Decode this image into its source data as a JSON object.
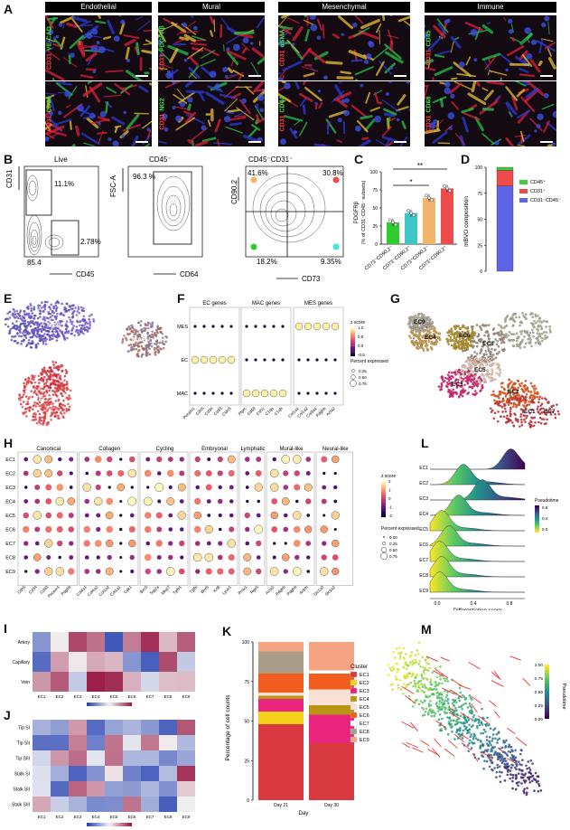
{
  "panel_letters": {
    "A": "A",
    "B": "B",
    "C": "C",
    "D": "D",
    "E": "E",
    "F": "F",
    "G": "G",
    "H": "H",
    "I": "I",
    "J": "J",
    "K": "K",
    "L": "L",
    "M": "M"
  },
  "panelA": {
    "headers": [
      "Endothelial",
      "Mural",
      "Mesenchymal",
      "Immune"
    ],
    "rows": [
      [
        {
          "red": "CD31",
          "green": "VE-CAD"
        },
        {
          "red": "CD31",
          "green": "PDGFRβ"
        },
        {
          "red": "CD31",
          "green": "αSMA"
        },
        {
          "red": "CD31",
          "green": "CD45"
        }
      ],
      [
        {
          "red": "CD31",
          "green": "CD34"
        },
        {
          "red": "CD31",
          "green": "NG2"
        },
        {
          "red": "CD31",
          "green": "CD44"
        },
        {
          "red": "CD31",
          "green": "CD68"
        }
      ]
    ]
  },
  "panelB": {
    "plot1": {
      "title": "Live",
      "q_upper": "11.1%",
      "q_lower_right": "2.78%",
      "q_lower_left": "85.4",
      "ylabel": "CD31",
      "xlabel": "CD45"
    },
    "plot2": {
      "title": "CD45⁻",
      "gate": "96.3 %",
      "ylabel": "FSC-A",
      "xlabel": "CD64"
    },
    "plot3": {
      "title": "CD45⁻CD31⁻",
      "q_tl": "41.6%",
      "q_tr": "30.8%",
      "q_bl": "18.2%",
      "q_br": "9.35%",
      "ylabel": "CD90.2",
      "xlabel": "CD73"
    }
  },
  "chart_data": [
    {
      "type": "bar",
      "panel": "C",
      "ylabel": "PDGFRβ",
      "ylabel2": "(% of CD31⁻CD45⁻ subsets)",
      "categories": [
        "CD73⁻CD90.2⁻",
        "CD73⁻CD90.2⁺",
        "CD73⁺CD90.2⁻",
        "CD73⁺CD90.2⁺"
      ],
      "values": [
        30,
        43,
        64,
        77
      ],
      "colors": [
        "#2ecc2e",
        "#3ec6c9",
        "#f4b36b",
        "#ee4b4b"
      ],
      "ylim": [
        0,
        100
      ],
      "yticks": [
        "0",
        "25",
        "50",
        "75",
        "100"
      ],
      "significance": [
        "**",
        "*"
      ]
    },
    {
      "type": "bar",
      "panel": "D",
      "stacked": true,
      "ylabel": "mBVO composition",
      "ylim": [
        0,
        100
      ],
      "yticks": [
        "0",
        "25",
        "50",
        "75",
        "100"
      ],
      "series": [
        {
          "name": "CD31⁻CD45⁻",
          "value": 82,
          "color": "#5f64e6"
        },
        {
          "name": "CD31⁺",
          "value": 15,
          "color": "#ee4b4b"
        },
        {
          "name": "CD45⁺",
          "value": 3,
          "color": "#43c843"
        }
      ],
      "legend": [
        "CD45⁺",
        "CD31⁺",
        "CD31⁻CD45⁻"
      ]
    },
    {
      "type": "bar",
      "panel": "K",
      "stacked": true,
      "ylabel": "Percentage of cell counts",
      "xlabel": "Day",
      "categories": [
        "Day 21",
        "Day 30"
      ],
      "ylim": [
        0,
        100
      ],
      "yticks": [
        "0",
        "25",
        "50",
        "75",
        "100"
      ],
      "legend_title": "Cluster",
      "series": [
        {
          "name": "EC1",
          "color": "#d93a3f",
          "values": [
            48,
            36
          ]
        },
        {
          "name": "EC2",
          "color": "#f3d21b",
          "values": [
            8,
            0
          ]
        },
        {
          "name": "EC3",
          "color": "#e8247c",
          "values": [
            8,
            18
          ]
        },
        {
          "name": "EC4",
          "color": "#b89412",
          "values": [
            2,
            6
          ]
        },
        {
          "name": "EC5",
          "color": "#fae1d6",
          "values": [
            2,
            10
          ]
        },
        {
          "name": "EC6",
          "color": "#f25c1c",
          "values": [
            12,
            10
          ]
        },
        {
          "name": "EC7",
          "color": "#ffffff",
          "values": [
            0,
            2
          ]
        },
        {
          "name": "EC8",
          "color": "#a99c88",
          "values": [
            14,
            0
          ]
        },
        {
          "name": "EC9",
          "color": "#f4a483",
          "values": [
            6,
            18
          ]
        }
      ]
    },
    {
      "type": "heatmap",
      "panel": "I",
      "rows": [
        "Artery",
        "Capillary",
        "Vein"
      ],
      "columns": [
        "EC1",
        "EC2",
        "EC3",
        "EC4",
        "EC5",
        "EC6",
        "EC7",
        "EC8",
        "EC9"
      ]
    },
    {
      "type": "heatmap",
      "panel": "J",
      "rows": [
        "Tip SI",
        "Tip SII",
        "Tip SIII",
        "Stalk SI",
        "Stalk SII",
        "Stalk SIII"
      ],
      "columns": [
        "EC1",
        "EC2",
        "EC3",
        "EC4",
        "EC5",
        "EC6",
        "EC7",
        "EC8",
        "EC9"
      ]
    }
  ],
  "panelE": {
    "labels": [
      "MES",
      "MAC",
      "EC"
    ]
  },
  "panelF": {
    "groups": [
      "EC genes",
      "MAC genes",
      "MES genes"
    ],
    "rows": [
      "MES",
      "EC",
      "MAC"
    ],
    "genes": [
      "Pecam1",
      "Cdh5",
      "Cd34",
      "Cd93",
      "Cldn5",
      "Ptprc",
      "Cd68",
      "Csf1r",
      "C1qa",
      "C1qb",
      "Col1a1",
      "Col1a2",
      "Col3a1",
      "Pdgfrb",
      "Acta2"
    ],
    "legend_title": "z score",
    "legend_ticks": [
      "1.0",
      "0.5",
      "0.0",
      "-0.5"
    ],
    "size_title": "Percent expressed",
    "size_ticks": [
      "0.25",
      "0.50",
      "0.75"
    ]
  },
  "panelG": {
    "clusters": [
      "EC9",
      "EC8",
      "EC4",
      "EC6",
      "EC5",
      "EC3",
      "EC2",
      "EC1",
      "EC7"
    ]
  },
  "panelH": {
    "groups": [
      "Canonical",
      "Collagen",
      "Cycling",
      "Embryonal",
      "Lymphatic",
      "Mural-like",
      "Neural-like"
    ],
    "rows": [
      "EC1",
      "EC2",
      "EC3",
      "EC4",
      "EC5",
      "EC6",
      "EC7",
      "EC8",
      "EC9"
    ],
    "genes": [
      "Cdh5",
      "Cd34",
      "Cd93",
      "Pecam1",
      "Pdgfrb",
      "Col4a1",
      "Col4a2",
      "Col1a2",
      "Col1a1",
      "Cdk1",
      "Birc5",
      "Top2a",
      "Mki67",
      "Tgfb1",
      "Tgfbi",
      "Wnt5",
      "Krt8",
      "Lyve1",
      "Prox1",
      "Rgs5",
      "Acta2",
      "Pdgfrb",
      "Pdgfrb",
      "Ankfn",
      "Slc1a3",
      "Slc1a2"
    ],
    "legend_title": "z score",
    "legend_ticks": [
      "2",
      "1",
      "0",
      "-1",
      "-2"
    ],
    "size_title": "Percent expressed",
    "size_ticks": [
      "0.00",
      "0.25",
      "0.50",
      "0.75"
    ]
  },
  "panelL": {
    "rows": [
      "EC1",
      "EC2",
      "EC3",
      "EC4",
      "EC5",
      "EC6",
      "EC7",
      "EC8",
      "EC9"
    ],
    "xlabel": "Differentiation score",
    "xticks": [
      "0.0",
      "0.4",
      "0.8"
    ],
    "legend_title": "Pseudotime",
    "legend_ticks": [
      "0.8",
      "0.4",
      "0.0"
    ]
  },
  "panelM": {
    "legend_title": "Pseudotime",
    "legend_ticks": [
      "1.00",
      "0.75",
      "0.50",
      "0.25",
      "0.00"
    ]
  }
}
